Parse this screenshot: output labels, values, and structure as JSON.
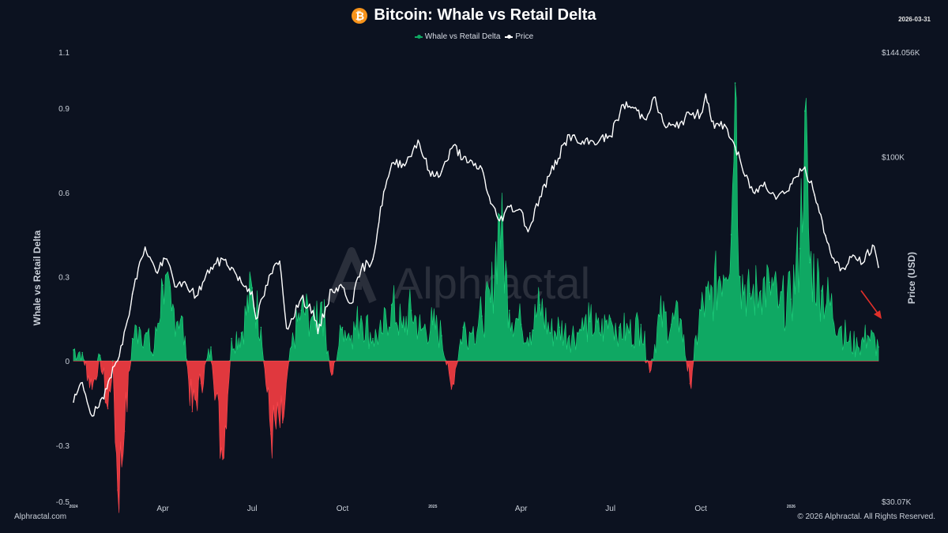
{
  "title": "Bitcoin: Whale vs Retail Delta",
  "date": "2026-03-31",
  "brand_icon": "bitcoin-icon",
  "watermark": "Alphractal",
  "footer": {
    "left": "Alphractal.com",
    "right": "© 2026 Alphractal. All Rights Reserved."
  },
  "colors": {
    "background": "#0c1220",
    "positive": "#0fa863",
    "positive_edge": "#1fd67f",
    "negative": "#e0383e",
    "price": "#ffffff",
    "bitcoin": "#f7931a",
    "arrow": "#e0302a"
  },
  "chart_data": {
    "type": "area",
    "title": "Bitcoin: Whale vs Retail Delta",
    "ylabel": "Whale vs Retail Delta",
    "y2label": "Price (USD)",
    "ylim": [
      -0.5,
      1.1
    ],
    "y_ticks": [
      {
        "value": -0.5,
        "label": "-0.5"
      },
      {
        "value": -0.3,
        "label": "-0.3"
      },
      {
        "value": 0,
        "label": "0"
      },
      {
        "value": 0.3,
        "label": "0.3"
      },
      {
        "value": 0.6,
        "label": "0.6"
      },
      {
        "value": 0.9,
        "label": "0.9"
      },
      {
        "value": 1.1,
        "label": "1.1"
      }
    ],
    "y2_scale": "log",
    "y2lim": [
      30070,
      144056
    ],
    "y2_ticks": [
      {
        "value": 30070,
        "label": "$30.07K"
      },
      {
        "value": 100000,
        "label": "$100K"
      },
      {
        "value": 144056,
        "label": "$144.056K"
      }
    ],
    "xlim": [
      "2024-01-01",
      "2026-03-31"
    ],
    "x_ticks": [
      {
        "value": "2024-01-01",
        "label": "2024",
        "small": true
      },
      {
        "value": "2024-04-01",
        "label": "Apr"
      },
      {
        "value": "2024-07-01",
        "label": "Jul"
      },
      {
        "value": "2024-10-01",
        "label": "Oct"
      },
      {
        "value": "2025-01-01",
        "label": "2025",
        "small": true
      },
      {
        "value": "2025-04-01",
        "label": "Apr"
      },
      {
        "value": "2025-07-01",
        "label": "Jul"
      },
      {
        "value": "2025-10-01",
        "label": "Oct"
      },
      {
        "value": "2026-01-01",
        "label": "2026",
        "small": true
      }
    ],
    "grid": false,
    "legend_position": "top-center",
    "series": [
      {
        "name": "Whale vs Retail Delta",
        "axis": "left",
        "color": "#0fa863",
        "negative_color": "#e0383e",
        "x": [
          "2024-01-01",
          "2024-01-10",
          "2024-01-20",
          "2024-01-28",
          "2024-02-05",
          "2024-02-10",
          "2024-02-15",
          "2024-02-22",
          "2024-03-01",
          "2024-03-08",
          "2024-03-15",
          "2024-03-22",
          "2024-04-01",
          "2024-04-10",
          "2024-04-20",
          "2024-05-01",
          "2024-05-10",
          "2024-05-20",
          "2024-06-01",
          "2024-06-10",
          "2024-06-20",
          "2024-07-01",
          "2024-07-10",
          "2024-07-20",
          "2024-08-01",
          "2024-08-10",
          "2024-08-20",
          "2024-09-01",
          "2024-09-10",
          "2024-09-20",
          "2024-10-01",
          "2024-10-10",
          "2024-10-20",
          "2024-11-01",
          "2024-11-10",
          "2024-11-20",
          "2024-12-01",
          "2024-12-10",
          "2024-12-20",
          "2025-01-01",
          "2025-01-10",
          "2025-01-20",
          "2025-02-01",
          "2025-02-10",
          "2025-02-20",
          "2025-03-01",
          "2025-03-10",
          "2025-03-20",
          "2025-04-01",
          "2025-04-10",
          "2025-04-20",
          "2025-05-01",
          "2025-05-10",
          "2025-05-20",
          "2025-06-01",
          "2025-06-10",
          "2025-06-20",
          "2025-07-01",
          "2025-07-10",
          "2025-07-20",
          "2025-08-01",
          "2025-08-10",
          "2025-08-20",
          "2025-09-01",
          "2025-09-10",
          "2025-09-20",
          "2025-10-01",
          "2025-10-10",
          "2025-10-20",
          "2025-11-01",
          "2025-11-05",
          "2025-11-10",
          "2025-11-20",
          "2025-12-01",
          "2025-12-10",
          "2025-12-20",
          "2026-01-01",
          "2026-01-10",
          "2026-01-15",
          "2026-01-20",
          "2026-02-01",
          "2026-02-10",
          "2026-02-20",
          "2026-03-01",
          "2026-03-10",
          "2026-03-20",
          "2026-03-31"
        ],
        "values": [
          0.04,
          0.03,
          -0.1,
          0.02,
          -0.17,
          0.0,
          -0.46,
          -0.25,
          0.08,
          0.12,
          0.1,
          0.02,
          0.27,
          0.18,
          0.16,
          -0.18,
          -0.08,
          0.05,
          -0.35,
          0.08,
          0.1,
          0.26,
          0.12,
          -0.26,
          -0.22,
          0.05,
          0.18,
          0.16,
          0.21,
          -0.05,
          0.12,
          0.09,
          0.16,
          0.08,
          0.1,
          0.2,
          0.12,
          0.18,
          0.11,
          0.13,
          0.09,
          -0.1,
          0.12,
          0.1,
          0.16,
          0.21,
          0.52,
          0.18,
          0.13,
          0.1,
          0.2,
          0.1,
          0.12,
          0.09,
          0.11,
          0.14,
          0.1,
          0.15,
          0.12,
          0.1,
          0.13,
          -0.04,
          0.16,
          0.13,
          0.15,
          -0.08,
          0.18,
          0.22,
          0.3,
          0.45,
          0.99,
          0.3,
          0.24,
          0.25,
          0.28,
          0.2,
          0.22,
          0.4,
          0.89,
          0.35,
          0.25,
          0.2,
          0.12,
          0.07,
          0.05,
          0.09,
          0.05
        ]
      },
      {
        "name": "Price",
        "axis": "right",
        "color": "#ffffff",
        "x": [
          "2024-01-01",
          "2024-01-10",
          "2024-01-20",
          "2024-02-01",
          "2024-02-10",
          "2024-02-20",
          "2024-03-01",
          "2024-03-10",
          "2024-03-14",
          "2024-03-25",
          "2024-04-05",
          "2024-04-15",
          "2024-04-25",
          "2024-05-05",
          "2024-05-20",
          "2024-06-01",
          "2024-06-10",
          "2024-06-20",
          "2024-07-01",
          "2024-07-05",
          "2024-07-20",
          "2024-07-29",
          "2024-08-05",
          "2024-08-20",
          "2024-09-01",
          "2024-09-06",
          "2024-09-20",
          "2024-10-01",
          "2024-10-10",
          "2024-10-20",
          "2024-11-01",
          "2024-11-12",
          "2024-11-22",
          "2024-12-05",
          "2024-12-17",
          "2024-12-30",
          "2025-01-10",
          "2025-01-22",
          "2025-02-05",
          "2025-02-20",
          "2025-03-01",
          "2025-03-10",
          "2025-03-20",
          "2025-04-01",
          "2025-04-08",
          "2025-04-20",
          "2025-05-01",
          "2025-05-20",
          "2025-06-01",
          "2025-06-20",
          "2025-07-01",
          "2025-07-14",
          "2025-07-25",
          "2025-08-05",
          "2025-08-14",
          "2025-08-25",
          "2025-09-05",
          "2025-09-20",
          "2025-10-01",
          "2025-10-06",
          "2025-10-15",
          "2025-10-25",
          "2025-11-05",
          "2025-11-15",
          "2025-11-25",
          "2025-12-05",
          "2025-12-15",
          "2025-12-25",
          "2026-01-05",
          "2026-01-15",
          "2026-01-25",
          "2026-02-05",
          "2026-02-15",
          "2026-02-25",
          "2026-03-05",
          "2026-03-15",
          "2026-03-25",
          "2026-03-31"
        ],
        "values": [
          42500,
          45500,
          40500,
          43000,
          48000,
          52000,
          62000,
          70000,
          73000,
          67000,
          70000,
          63500,
          64000,
          61500,
          68000,
          70000,
          68000,
          64500,
          62500,
          56800,
          66500,
          69500,
          55000,
          61000,
          58500,
          54000,
          63000,
          63500,
          60000,
          67500,
          70000,
          88500,
          98000,
          98000,
          106000,
          93500,
          95000,
          104000,
          98000,
          96000,
          85000,
          80000,
          84000,
          83000,
          77000,
          87000,
          94500,
          108000,
          104500,
          106000,
          107500,
          120000,
          118500,
          114000,
          123000,
          111500,
          111000,
          116000,
          116000,
          124500,
          110500,
          112000,
          103500,
          93500,
          88000,
          91500,
          87500,
          88000,
          93000,
          96500,
          87500,
          76000,
          69000,
          67500,
          71000,
          69000,
          73500,
          68000
        ]
      }
    ]
  }
}
